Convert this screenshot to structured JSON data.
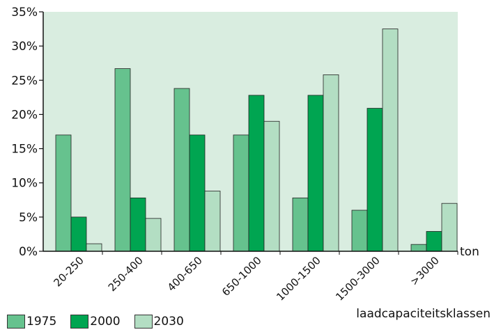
{
  "chart_data": {
    "type": "bar",
    "categories": [
      "20-250",
      "250-400",
      "400-650",
      "650-1000",
      "1000-1500",
      "1500-3000",
      ">3000"
    ],
    "series": [
      {
        "name": "1975",
        "values": [
          17,
          26.7,
          23.8,
          17,
          7.8,
          6,
          1
        ],
        "color": "#66c28e"
      },
      {
        "name": "2000",
        "values": [
          5,
          7.8,
          17,
          22.8,
          22.8,
          20.9,
          2.9
        ],
        "color": "#00a551"
      },
      {
        "name": "2030",
        "values": [
          1.1,
          4.8,
          8.8,
          19,
          25.8,
          32.5,
          7
        ],
        "color": "#b3dec3"
      }
    ],
    "ylim": [
      0,
      35
    ],
    "yticks": [
      "0%",
      "5%",
      "10%",
      "15%",
      "20%",
      "25%",
      "30%",
      "35%"
    ],
    "ytick_values": [
      0,
      5,
      10,
      15,
      20,
      25,
      30,
      35
    ],
    "y_unit_label": "ton",
    "xlabel": "laadcapaciteitsklassen",
    "background_color": "#d9ede0",
    "grid": false,
    "legend_position": "bottom-left"
  }
}
